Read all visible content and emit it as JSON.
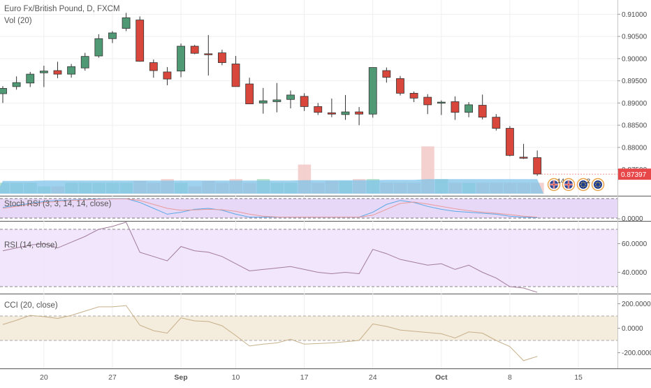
{
  "header": {
    "symbol_title": "Euro Fx/British Pound, D, FXCM",
    "volume_label": "Vol (20)"
  },
  "panes": {
    "stoch_label": "Stoch RSI (3, 3, 14, 14, close)",
    "rsi_label": "RSI (14, close)",
    "cci_label": "CCI (20, close)"
  },
  "price_axis": {
    "ticks": [
      "0.91000",
      "0.90500",
      "0.90000",
      "0.89500",
      "0.89000",
      "0.88500",
      "0.88000",
      "0.87500"
    ],
    "last_price": "0.87397"
  },
  "stoch_axis": {
    "ticks": [
      "0.0000"
    ]
  },
  "rsi_axis": {
    "ticks": [
      "60.0000",
      "40.0000"
    ]
  },
  "cci_axis": {
    "ticks": [
      "200.0000",
      "0.0000",
      "-200.0000"
    ]
  },
  "time_axis": {
    "ticks": [
      "20",
      "27",
      "Sep",
      "10",
      "17",
      "24",
      "Oct",
      "8",
      "15"
    ]
  },
  "events": [
    {
      "flag": "uk-flag-icon",
      "count": "14"
    },
    {
      "flag": "uk-flag-icon",
      "count": ""
    },
    {
      "flag": "eu-flag-icon",
      "count": "2"
    },
    {
      "flag": "eu-flag-icon",
      "count": ""
    }
  ],
  "colors": {
    "up": "#4f9a74",
    "down": "#d9463b",
    "last_price_bg": "#e8474a",
    "volume_up": "#a8dcc0",
    "volume_down": "#f2c9c6",
    "volume_ma": "#7fc3ea",
    "stoch_band": "#e6d4f6",
    "rsi_band": "#efe3fb",
    "cci_band": "#f3ead9"
  },
  "chart_data": {
    "type": "candlestick",
    "title": "Euro Fx/British Pound, D, FXCM",
    "price_range": [
      0.871,
      0.911
    ],
    "candles": [
      {
        "date": "Aug 15",
        "o": 0.8921,
        "h": 0.8938,
        "l": 0.89,
        "c": 0.8933
      },
      {
        "date": "Aug 16",
        "o": 0.8937,
        "h": 0.896,
        "l": 0.893,
        "c": 0.8946
      },
      {
        "date": "Aug 17",
        "o": 0.8945,
        "h": 0.897,
        "l": 0.8936,
        "c": 0.8965
      },
      {
        "date": "Aug 20",
        "o": 0.8968,
        "h": 0.8984,
        "l": 0.8936,
        "c": 0.8972
      },
      {
        "date": "Aug 21",
        "o": 0.8973,
        "h": 0.8993,
        "l": 0.8956,
        "c": 0.8965
      },
      {
        "date": "Aug 22",
        "o": 0.8965,
        "h": 0.8988,
        "l": 0.8957,
        "c": 0.8982
      },
      {
        "date": "Aug 23",
        "o": 0.8979,
        "h": 0.9013,
        "l": 0.8973,
        "c": 0.9005
      },
      {
        "date": "Aug 24",
        "o": 0.9006,
        "h": 0.9055,
        "l": 0.9002,
        "c": 0.9045
      },
      {
        "date": "Aug 27",
        "o": 0.9045,
        "h": 0.9062,
        "l": 0.9035,
        "c": 0.9058
      },
      {
        "date": "Aug 28",
        "o": 0.9068,
        "h": 0.9103,
        "l": 0.9062,
        "c": 0.9092
      },
      {
        "date": "Aug 29",
        "o": 0.9087,
        "h": 0.9095,
        "l": 0.8993,
        "c": 0.8994
      },
      {
        "date": "Aug 30",
        "o": 0.8991,
        "h": 0.8998,
        "l": 0.8957,
        "c": 0.8973
      },
      {
        "date": "Aug 31",
        "o": 0.897,
        "h": 0.8981,
        "l": 0.894,
        "c": 0.8954
      },
      {
        "date": "Sep 3",
        "o": 0.8972,
        "h": 0.9034,
        "l": 0.8958,
        "c": 0.9028
      },
      {
        "date": "Sep 4",
        "o": 0.9028,
        "h": 0.9031,
        "l": 0.901,
        "c": 0.9012
      },
      {
        "date": "Sep 5",
        "o": 0.9011,
        "h": 0.9053,
        "l": 0.8962,
        "c": 0.901
      },
      {
        "date": "Sep 6",
        "o": 0.9013,
        "h": 0.902,
        "l": 0.8985,
        "c": 0.8991
      },
      {
        "date": "Sep 7",
        "o": 0.8988,
        "h": 0.9006,
        "l": 0.894,
        "c": 0.8937
      },
      {
        "date": "Sep 10",
        "o": 0.8943,
        "h": 0.8957,
        "l": 0.8898,
        "c": 0.8898
      },
      {
        "date": "Sep 11",
        "o": 0.89,
        "h": 0.8934,
        "l": 0.8876,
        "c": 0.8905
      },
      {
        "date": "Sep 12",
        "o": 0.8903,
        "h": 0.8945,
        "l": 0.8879,
        "c": 0.8907
      },
      {
        "date": "Sep 13",
        "o": 0.8908,
        "h": 0.8928,
        "l": 0.8888,
        "c": 0.8918
      },
      {
        "date": "Sep 14",
        "o": 0.8915,
        "h": 0.8922,
        "l": 0.8882,
        "c": 0.8892
      },
      {
        "date": "Sep 17",
        "o": 0.8892,
        "h": 0.89,
        "l": 0.8873,
        "c": 0.8879
      },
      {
        "date": "Sep 18",
        "o": 0.8878,
        "h": 0.891,
        "l": 0.8868,
        "c": 0.8875
      },
      {
        "date": "Sep 19",
        "o": 0.8874,
        "h": 0.8918,
        "l": 0.8862,
        "c": 0.888
      },
      {
        "date": "Sep 20",
        "o": 0.888,
        "h": 0.8891,
        "l": 0.885,
        "c": 0.8875
      },
      {
        "date": "Sep 21",
        "o": 0.8875,
        "h": 0.898,
        "l": 0.8867,
        "c": 0.898
      },
      {
        "date": "Sep 24",
        "o": 0.8973,
        "h": 0.898,
        "l": 0.8946,
        "c": 0.8958
      },
      {
        "date": "Sep 25",
        "o": 0.8955,
        "h": 0.8961,
        "l": 0.8917,
        "c": 0.8922
      },
      {
        "date": "Sep 26",
        "o": 0.8922,
        "h": 0.8926,
        "l": 0.8902,
        "c": 0.8911
      },
      {
        "date": "Sep 27",
        "o": 0.8913,
        "h": 0.892,
        "l": 0.8875,
        "c": 0.8896
      },
      {
        "date": "Sep 28",
        "o": 0.89,
        "h": 0.8906,
        "l": 0.8873,
        "c": 0.8902
      },
      {
        "date": "Oct 1",
        "o": 0.8903,
        "h": 0.8915,
        "l": 0.8862,
        "c": 0.8879
      },
      {
        "date": "Oct 2",
        "o": 0.8879,
        "h": 0.8902,
        "l": 0.8868,
        "c": 0.8896
      },
      {
        "date": "Oct 3",
        "o": 0.8895,
        "h": 0.8919,
        "l": 0.8863,
        "c": 0.8868
      },
      {
        "date": "Oct 4",
        "o": 0.8868,
        "h": 0.8875,
        "l": 0.8838,
        "c": 0.8843
      },
      {
        "date": "Oct 5",
        "o": 0.8843,
        "h": 0.8848,
        "l": 0.878,
        "c": 0.8782
      },
      {
        "date": "Oct 8",
        "o": 0.8778,
        "h": 0.8808,
        "l": 0.8774,
        "c": 0.8776
      },
      {
        "date": "Oct 9",
        "o": 0.8777,
        "h": 0.8793,
        "l": 0.8736,
        "c": 0.874
      }
    ],
    "volume": [
      0.3,
      0.3,
      0.3,
      0.2,
      0.2,
      0.3,
      0.3,
      0.3,
      0.3,
      0.3,
      0.35,
      0.3,
      0.4,
      0.3,
      0.2,
      0.35,
      0.3,
      0.4,
      0.3,
      0.4,
      0.3,
      0.3,
      0.8,
      0.3,
      0.35,
      0.35,
      0.4,
      0.4,
      0.3,
      0.3,
      0.3,
      1.3,
      0.4,
      0.3,
      0.3,
      0.3,
      0.3,
      0.3,
      0.3,
      0.3
    ],
    "volume_ma": [
      0.35,
      0.35,
      0.35,
      0.36,
      0.36,
      0.36,
      0.36,
      0.36,
      0.36,
      0.36,
      0.36,
      0.36,
      0.36,
      0.36,
      0.36,
      0.36,
      0.36,
      0.36,
      0.36,
      0.36,
      0.36,
      0.36,
      0.37,
      0.37,
      0.37,
      0.37,
      0.37,
      0.37,
      0.38,
      0.38,
      0.38,
      0.4,
      0.4,
      0.4,
      0.4,
      0.4,
      0.4,
      0.4,
      0.4,
      0.4
    ],
    "stoch_rsi": {
      "k": [
        0.55,
        0.65,
        0.75,
        0.85,
        0.9,
        0.92,
        0.95,
        0.98,
        1.0,
        1.0,
        0.8,
        0.5,
        0.2,
        0.3,
        0.45,
        0.5,
        0.4,
        0.2,
        0.05,
        0.05,
        0.05,
        0.05,
        0.05,
        0.05,
        0.05,
        0.05,
        0.05,
        0.3,
        0.7,
        0.9,
        0.8,
        0.6,
        0.45,
        0.35,
        0.3,
        0.25,
        0.2,
        0.1,
        0.05,
        0.02
      ],
      "d": [
        0.5,
        0.6,
        0.7,
        0.8,
        0.85,
        0.9,
        0.93,
        0.96,
        0.98,
        0.98,
        0.9,
        0.7,
        0.5,
        0.4,
        0.42,
        0.45,
        0.43,
        0.35,
        0.2,
        0.1,
        0.06,
        0.05,
        0.05,
        0.05,
        0.05,
        0.05,
        0.05,
        0.15,
        0.45,
        0.75,
        0.82,
        0.72,
        0.6,
        0.48,
        0.38,
        0.3,
        0.25,
        0.18,
        0.1,
        0.05
      ]
    },
    "rsi": [
      55,
      57,
      59,
      60,
      57,
      61,
      65,
      70,
      72,
      75,
      54,
      51,
      48,
      58,
      55,
      54,
      51,
      46,
      41,
      42,
      43,
      44,
      42,
      40,
      39,
      40,
      39,
      56,
      53,
      49,
      47,
      45,
      46,
      42,
      45,
      40,
      36,
      30,
      29,
      26
    ],
    "rsi_bands": [
      30,
      70
    ],
    "cci": [
      30,
      65,
      105,
      95,
      80,
      105,
      140,
      175,
      175,
      185,
      25,
      -20,
      -40,
      85,
      60,
      55,
      20,
      -60,
      -145,
      -130,
      -120,
      -90,
      -130,
      -125,
      -120,
      -110,
      -100,
      35,
      15,
      -15,
      -25,
      -35,
      -45,
      -80,
      -30,
      -40,
      -100,
      -150,
      -265,
      -230
    ],
    "cci_bands": [
      -100,
      100
    ],
    "x_ticks": [
      "20",
      "27",
      "Sep",
      "10",
      "17",
      "24",
      "Oct",
      "8",
      "15"
    ],
    "last_price": 0.87397
  }
}
